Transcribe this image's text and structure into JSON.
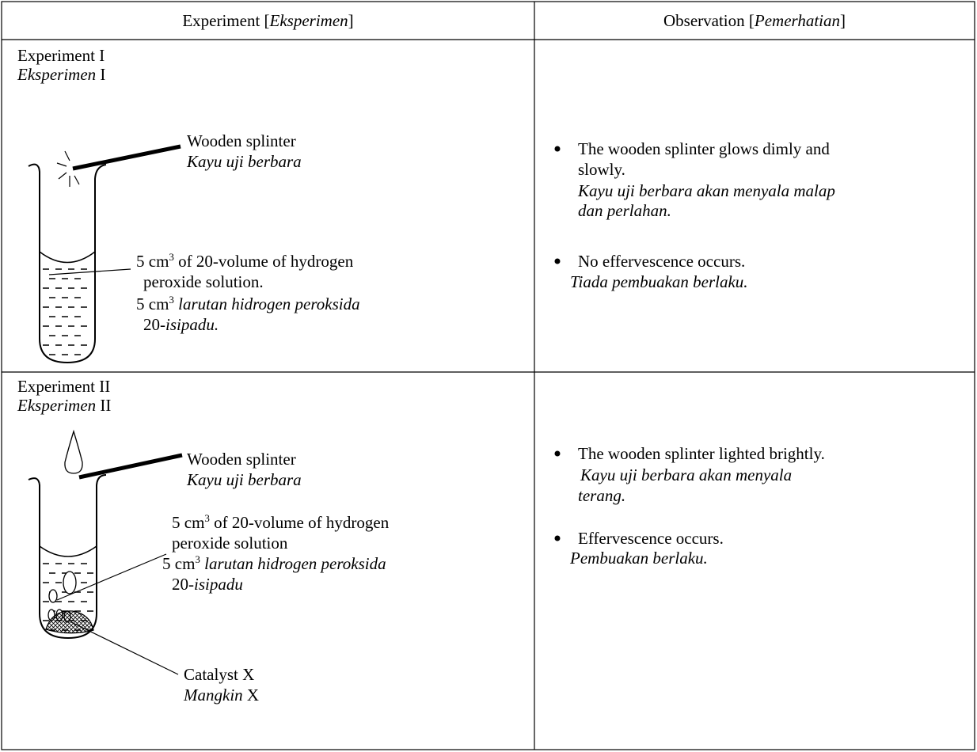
{
  "table": {
    "header": [
      [
        "Experiment [",
        "Eksperimen",
        "]"
      ],
      [
        "Observation [",
        "Pemerhatian",
        "]"
      ]
    ],
    "rows": [
      {
        "experiment": {
          "title": "Experiment I",
          "title_ms": [
            "Eksperimen",
            " I"
          ],
          "splinter": "Wooden splinter",
          "splinter_ms": "Kayu uji berbara",
          "solution": [
            [
              "5 cm",
              "3",
              " of 20-volume of hydrogen"
            ],
            [
              "peroxide solution."
            ],
            [
              "5 cm",
              "3",
              " larutan hidrogen peroksida"
            ],
            [
              "20-",
              "isipadu."
            ]
          ]
        },
        "observation": [
          {
            "lines": [
              "The wooden splinter glows dimly and",
              "slowly."
            ],
            "lines_ms": [
              "Kayu uji berbara akan menyala malap",
              "dan perlahan."
            ]
          },
          {
            "lines": [
              "No effervescence occurs."
            ],
            "lines_ms": [
              "Tiada pembuakan berlaku."
            ]
          }
        ]
      },
      {
        "experiment": {
          "title": "Experiment II",
          "title_ms": [
            "Eksperimen",
            " II"
          ],
          "splinter": "Wooden splinter",
          "splinter_ms": "Kayu uji berbara",
          "solution": [
            [
              "5 cm",
              "3",
              " of 20-volume of hydrogen"
            ],
            [
              "peroxide solution"
            ],
            [
              "5 cm",
              "3",
              " larutan hidrogen peroksida"
            ],
            [
              "20-",
              "isipadu"
            ]
          ],
          "catalyst": "Catalyst X",
          "catalyst_ms": [
            "Mangkin",
            " X"
          ]
        },
        "observation": [
          {
            "lines": [
              "The wooden splinter lighted brightly."
            ],
            "lines_ms": [
              "Kayu uji berbara akan menyala",
              "terang."
            ]
          },
          {
            "lines": [
              "Effervescence occurs."
            ],
            "lines_ms": [
              "Pembuakan berlaku."
            ]
          }
        ]
      }
    ]
  }
}
